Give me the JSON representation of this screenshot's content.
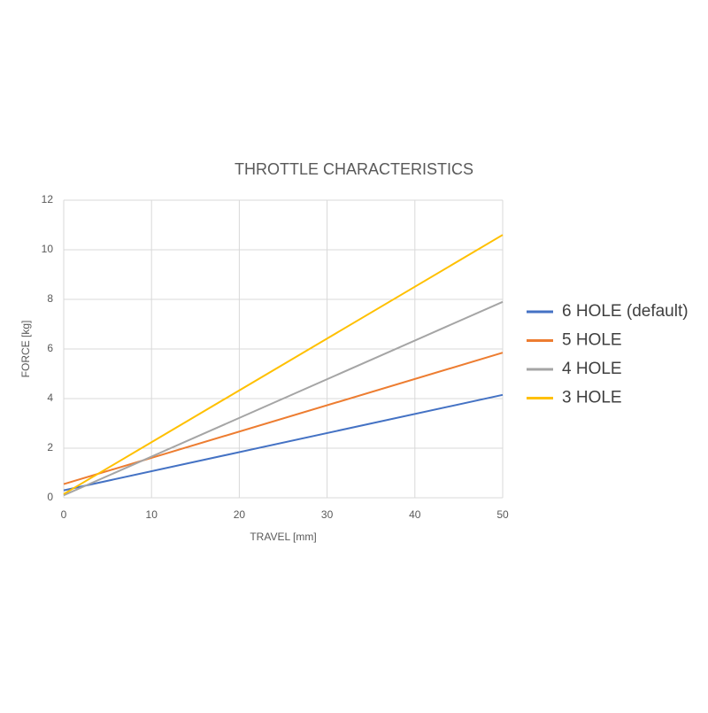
{
  "chart_data": {
    "type": "line",
    "title": "THROTTLE CHARACTERISTICS",
    "x_label": "TRAVEL [mm]",
    "y_label": "FORCE [kg]",
    "x": [
      0,
      50
    ],
    "series": [
      {
        "name": "6 HOLE (default)",
        "color": "#4472c4",
        "values": [
          0.3,
          4.15
        ]
      },
      {
        "name": "5 HOLE",
        "color": "#ed7d31",
        "values": [
          0.55,
          5.85
        ]
      },
      {
        "name": "4 HOLE",
        "color": "#a5a5a5",
        "values": [
          0.1,
          7.9
        ]
      },
      {
        "name": "3 HOLE",
        "color": "#ffc000",
        "values": [
          0.15,
          10.6
        ]
      }
    ],
    "xlim": [
      0,
      50
    ],
    "xticks": [
      0,
      10,
      20,
      30,
      40,
      50
    ],
    "ylim": [
      0,
      12
    ],
    "yticks": [
      0,
      2,
      4,
      6,
      8,
      10,
      12
    ],
    "grid": true,
    "legend": "right"
  }
}
